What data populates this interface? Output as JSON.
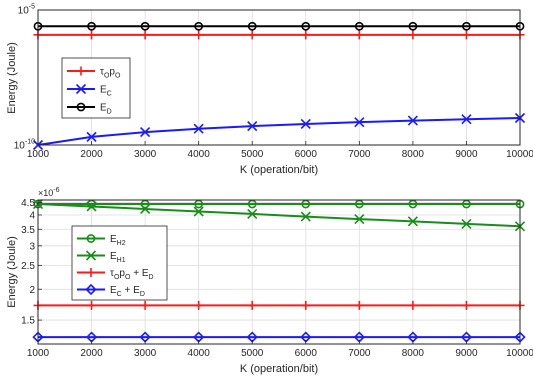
{
  "chart_data": [
    {
      "type": "line",
      "xlabel": "K (operation/bit)",
      "ylabel": "Energy (Joule)",
      "yscale": "log",
      "xlim": [
        1000,
        10000
      ],
      "ylim": [
        1e-10,
        1e-05
      ],
      "grid": true,
      "legend_position": "left-middle",
      "x": [
        1000,
        2000,
        3000,
        4000,
        5000,
        6000,
        7000,
        8000,
        9000,
        10000
      ],
      "xtick_labels": [
        "1000",
        "2000",
        "3000",
        "4000",
        "5000",
        "6000",
        "7000",
        "8000",
        "9000",
        "10000"
      ],
      "yticks": [
        {
          "value": 1e-05,
          "label": "10",
          "exponent": "-5"
        },
        {
          "value": 1e-10,
          "label": "10",
          "exponent": "-10"
        }
      ],
      "series": [
        {
          "legend": {
            "main": "τ",
            "sub": "O",
            "main2": "p",
            "sub2": "O",
            "rest": ""
          },
          "color": "#ff1a1a",
          "marker": "plus",
          "values": [
            1.2e-06,
            1.2e-06,
            1.2e-06,
            1.2e-06,
            1.2e-06,
            1.2e-06,
            1.2e-06,
            1.2e-06,
            1.2e-06,
            1.2e-06
          ]
        },
        {
          "legend": {
            "main": "E",
            "sub": "C",
            "main2": "",
            "sub2": "",
            "rest": ""
          },
          "color": "#1a1aff",
          "marker": "x",
          "values": [
            1e-10,
            2e-10,
            3e-10,
            4e-10,
            5e-10,
            6e-10,
            7e-10,
            8e-10,
            9e-10,
            1e-09
          ]
        },
        {
          "legend": {
            "main": "E",
            "sub": "D",
            "main2": "",
            "sub2": "",
            "rest": ""
          },
          "color": "#000000",
          "marker": "circle",
          "values": [
            2.5e-06,
            2.5e-06,
            2.5e-06,
            2.5e-06,
            2.5e-06,
            2.5e-06,
            2.5e-06,
            2.5e-06,
            2.5e-06,
            2.5e-06
          ]
        }
      ]
    },
    {
      "type": "line",
      "xlabel": "K (operation/bit)",
      "ylabel": "Energy (Joule)",
      "yscale": "log",
      "exponent_label": "×10",
      "exponent_power": "-6",
      "xlim": [
        1000,
        10000
      ],
      "ylim": [
        1.2,
        4.6
      ],
      "grid": true,
      "legend_position": "left-middle",
      "x": [
        1000,
        2000,
        3000,
        4000,
        5000,
        6000,
        7000,
        8000,
        9000,
        10000
      ],
      "xtick_labels": [
        "1000",
        "2000",
        "3000",
        "4000",
        "5000",
        "6000",
        "7000",
        "8000",
        "9000",
        "10000"
      ],
      "yticks": [
        {
          "value": 1.5,
          "label": "1.5"
        },
        {
          "value": 2,
          "label": "2"
        },
        {
          "value": 2.5,
          "label": "2.5"
        },
        {
          "value": 3,
          "label": "3"
        },
        {
          "value": 3.5,
          "label": "3.5"
        },
        {
          "value": 4,
          "label": "4"
        },
        {
          "value": 4.5,
          "label": "4.5"
        }
      ],
      "series": [
        {
          "legend": {
            "main": "E",
            "sub": "H2",
            "main2": "",
            "sub2": "",
            "rest": ""
          },
          "color": "#1a8c1a",
          "marker": "circle",
          "values": [
            4.43,
            4.43,
            4.43,
            4.43,
            4.43,
            4.43,
            4.43,
            4.43,
            4.43,
            4.43
          ]
        },
        {
          "legend": {
            "main": "E",
            "sub": "H1",
            "main2": "",
            "sub2": "",
            "rest": ""
          },
          "color": "#1a8c1a",
          "marker": "x",
          "values": [
            4.43,
            4.33,
            4.23,
            4.13,
            4.04,
            3.94,
            3.85,
            3.77,
            3.68,
            3.6
          ]
        },
        {
          "legend": {
            "main": "τ",
            "sub": "O",
            "main2": "p",
            "sub2": "O",
            "rest": " + E",
            "sub3": "D"
          },
          "color": "#ff1a1a",
          "marker": "plus",
          "values": [
            1.72,
            1.72,
            1.72,
            1.72,
            1.72,
            1.72,
            1.72,
            1.72,
            1.72,
            1.72
          ]
        },
        {
          "legend": {
            "main": "E",
            "sub": "C",
            "main2": "",
            "sub2": "",
            "rest": " + E",
            "sub3": "D"
          },
          "color": "#1a1aff",
          "marker": "diamond",
          "values": [
            1.28,
            1.28,
            1.28,
            1.28,
            1.28,
            1.28,
            1.28,
            1.28,
            1.28,
            1.28
          ]
        }
      ]
    }
  ]
}
